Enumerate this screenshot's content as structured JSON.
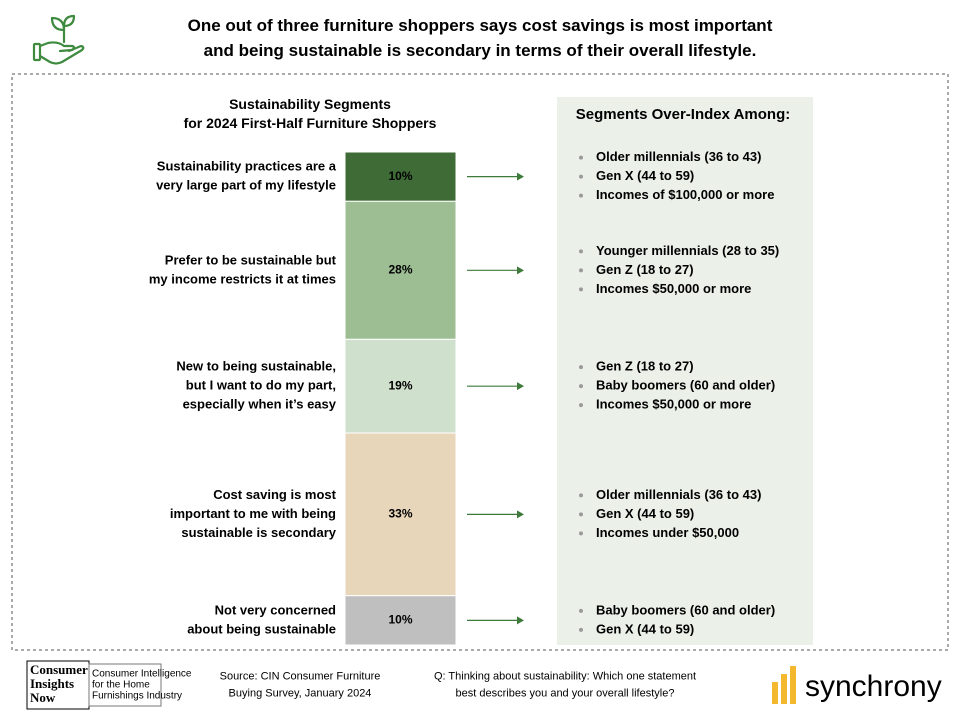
{
  "header": {
    "title_lines": [
      "One out of three furniture shoppers says cost savings is most important",
      "and being sustainable is secondary in terms of their overall lifestyle."
    ]
  },
  "chart_data": {
    "type": "stacked-column",
    "title": [
      "Sustainability Segments",
      "for 2024 First-Half Furniture Shoppers"
    ],
    "categories": [
      [
        "Sustainability practices are a",
        "very large part of my lifestyle"
      ],
      [
        "Prefer to be sustainable but",
        "my income restricts it at times"
      ],
      [
        "New to being sustainable,",
        "but I want to do my part,",
        "especially when it’s easy"
      ],
      [
        "Cost saving is most",
        "important to me with being",
        "sustainable is secondary"
      ],
      [
        "Not very concerned",
        "about being sustainable"
      ]
    ],
    "values": [
      10,
      28,
      19,
      33,
      10
    ],
    "value_labels": [
      "10%",
      "28%",
      "19%",
      "33%",
      "10%"
    ],
    "colors": [
      "#3e6b36",
      "#9dbd93",
      "#cfe0cc",
      "#e8d6ba",
      "#bfbfbf"
    ]
  },
  "panel": {
    "title": "Segments Over-Index Among:",
    "groups": [
      [
        "Older millennials (36 to 43)",
        "Gen X (44 to 59)",
        "Incomes of $100,000 or more"
      ],
      [
        "Younger millennials (28 to 35)",
        "Gen Z (18 to 27)",
        "Incomes $50,000 or more"
      ],
      [
        "Gen Z (18 to 27)",
        "Baby boomers (60 and older)",
        "Incomes $50,000 or more"
      ],
      [
        "Older millennials (36 to 43)",
        "Gen X (44 to 59)",
        "Incomes under $50,000"
      ],
      [
        "Baby boomers (60 and older)",
        "Gen X (44 to 59)"
      ]
    ]
  },
  "footer": {
    "logo": [
      "Consumer",
      "Insights",
      "Now"
    ],
    "tagline": [
      "Consumer Intelligence",
      "for the Home",
      "Furnishings Industry"
    ],
    "source": [
      "Source: CIN Consumer Furniture",
      "Buying Survey, January 2024"
    ],
    "question": [
      "Q: Thinking about sustainability: Which one statement",
      "best describes you and your overall lifestyle?"
    ],
    "brand": "synchrony"
  }
}
